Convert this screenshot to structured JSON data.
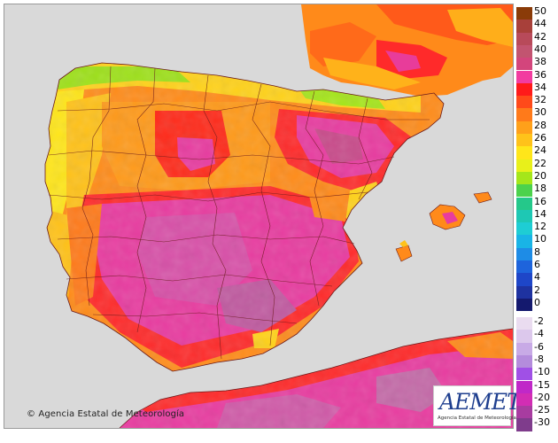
{
  "credit": {
    "icon": "copyright-icon",
    "text": "Agencia Estatal de Meteorología"
  },
  "logo": {
    "name": "AEMET",
    "tagline": "Agencia Estatal de Meteorología"
  },
  "legend": {
    "warm": [
      {
        "label": "50",
        "color": "#8a3b08"
      },
      {
        "label": "44",
        "color": "#a8403a"
      },
      {
        "label": "42",
        "color": "#b84a5a"
      },
      {
        "label": "40",
        "color": "#c25470"
      },
      {
        "label": "38",
        "color": "#d3457c"
      },
      {
        "label": "36",
        "color": "#f23ca0"
      },
      {
        "label": "34",
        "color": "#ff1a1a"
      },
      {
        "label": "32",
        "color": "#ff4a1a"
      },
      {
        "label": "30",
        "color": "#ff7a1a"
      },
      {
        "label": "28",
        "color": "#ffa01a"
      },
      {
        "label": "26",
        "color": "#ffc21a"
      },
      {
        "label": "24",
        "color": "#ffe61a"
      },
      {
        "label": "22",
        "color": "#e8f01a"
      },
      {
        "label": "20",
        "color": "#a5e61a"
      },
      {
        "label": "18",
        "color": "#4cd24c"
      },
      {
        "label": "16",
        "color": "#25c88a"
      },
      {
        "label": "14",
        "color": "#1ec8b4"
      },
      {
        "label": "12",
        "color": "#1ecdd4"
      },
      {
        "label": "10",
        "color": "#19b4e6"
      },
      {
        "label": "8",
        "color": "#1e8ce6"
      },
      {
        "label": "6",
        "color": "#1e64dc"
      },
      {
        "label": "4",
        "color": "#1e46c8"
      },
      {
        "label": "2",
        "color": "#1e32a0"
      },
      {
        "label": "0",
        "color": "#14196e"
      }
    ],
    "cold": [
      {
        "label": "-2",
        "color": "#eadcf0"
      },
      {
        "label": "-4",
        "color": "#dcc8ec"
      },
      {
        "label": "-6",
        "color": "#c8aae6"
      },
      {
        "label": "-8",
        "color": "#b48cdc"
      },
      {
        "label": "-10",
        "color": "#a050e6"
      },
      {
        "label": "-15",
        "color": "#c028c8"
      },
      {
        "label": "-20",
        "color": "#d22db4"
      },
      {
        "label": "-25",
        "color": "#a83ca0"
      },
      {
        "label": "-30",
        "color": "#7f3c8c"
      }
    ]
  }
}
